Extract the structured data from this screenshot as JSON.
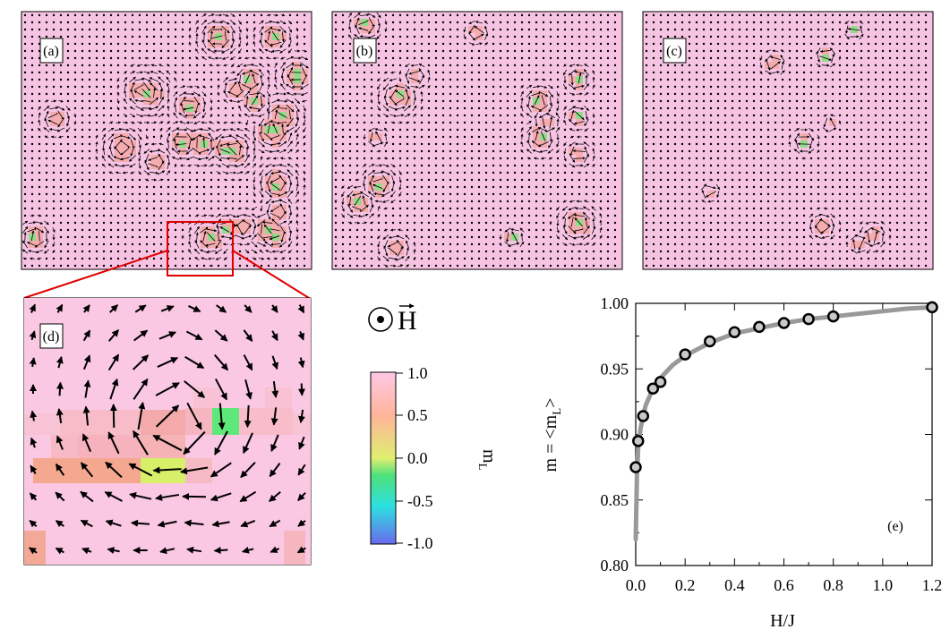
{
  "panels": {
    "a": {
      "label": "(a)"
    },
    "b": {
      "label": "(b)"
    },
    "c": {
      "label": "(c)"
    },
    "d": {
      "label": "(d)"
    }
  },
  "field_symbol": {
    "text": "H",
    "arrow": "→"
  },
  "colorbar": {
    "label": "m",
    "label_subscript": "L",
    "ticks": [
      "1.0",
      "0.5",
      "0.0",
      "-0.5",
      "-1.0"
    ],
    "colors": [
      "#ffc8e6",
      "#ffb49a",
      "#e0ee70",
      "#4ee07a",
      "#2ce0e0",
      "#6a6aee"
    ]
  },
  "colors": {
    "background_pink": "#f7c3e3",
    "inset_box": "#e00000",
    "curve": "#999999"
  },
  "chart_data": {
    "type": "scatter",
    "panel_label": "(e)",
    "xlabel": "H/J",
    "ylabel": "m = <m_L>",
    "xlim": [
      0.0,
      1.2
    ],
    "ylim": [
      0.8,
      1.0
    ],
    "x_ticks": [
      "0.0",
      "0.2",
      "0.4",
      "0.6",
      "0.8",
      "1.0",
      "1.2"
    ],
    "y_ticks": [
      "0.80",
      "0.85",
      "0.90",
      "0.95",
      "1.00"
    ],
    "grid": false,
    "series": [
      {
        "x": [
          0.0,
          0.01,
          0.03,
          0.07,
          0.1,
          0.2,
          0.3,
          0.4,
          0.5,
          0.6,
          0.7,
          0.8,
          1.2
        ],
        "y": [
          0.875,
          0.895,
          0.914,
          0.935,
          0.94,
          0.961,
          0.971,
          0.978,
          0.982,
          0.985,
          0.988,
          0.99,
          0.997
        ]
      }
    ],
    "fit_curve": {
      "x": [
        0.0,
        0.005,
        0.01,
        0.02,
        0.04,
        0.07,
        0.1,
        0.15,
        0.2,
        0.3,
        0.4,
        0.5,
        0.6,
        0.7,
        0.8,
        0.9,
        1.0,
        1.1,
        1.2
      ],
      "y": [
        0.82,
        0.87,
        0.89,
        0.905,
        0.922,
        0.935,
        0.943,
        0.953,
        0.96,
        0.97,
        0.977,
        0.981,
        0.985,
        0.988,
        0.99,
        0.992,
        0.994,
        0.996,
        0.997
      ]
    }
  }
}
